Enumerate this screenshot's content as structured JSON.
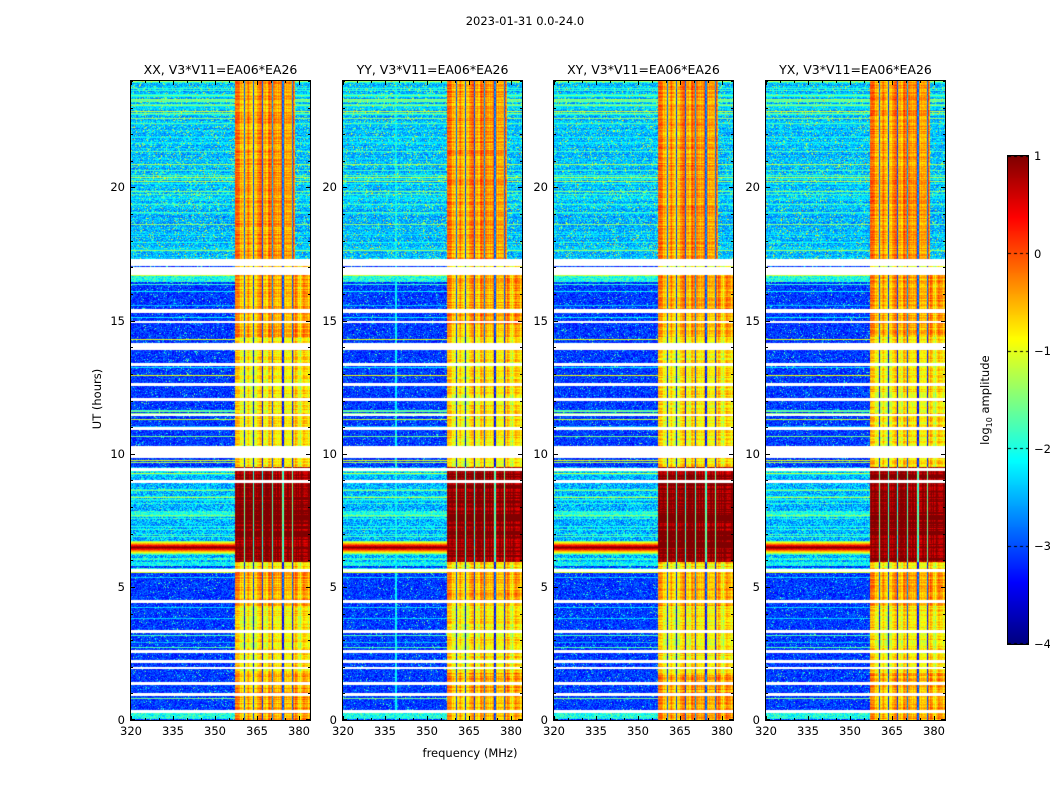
{
  "figure": {
    "title": "2023-01-31 0.0-24.0",
    "xlabel": "frequency (MHz)",
    "ylabel": "UT (hours)",
    "colorbar_label_log": "log",
    "colorbar_label_sub": "10",
    "colorbar_label_rest": " amplitude"
  },
  "chart_data": {
    "type": "heatmap",
    "title": "2023-01-31 0.0-24.0",
    "xlabel": "frequency (MHz)",
    "ylabel": "UT (hours)",
    "x_range": [
      320,
      384
    ],
    "x_ticks": [
      320,
      335,
      350,
      365,
      380
    ],
    "x_minor_step": 5,
    "y_range": [
      0,
      24
    ],
    "y_ticks": [
      0,
      5,
      10,
      15,
      20
    ],
    "y_minor_step": 1,
    "colormap": "jet",
    "colorbar": {
      "label": "log10 amplitude",
      "min": -4,
      "max": 1,
      "ticks": [
        1,
        0,
        -1,
        -2,
        -3,
        -4
      ]
    },
    "panels": [
      {
        "label": "XX, V3*V11=EA06*EA26",
        "pol": "XX"
      },
      {
        "label": "YY, V3*V11=EA06*EA26",
        "pol": "YY"
      },
      {
        "label": "XY, V3*V11=EA06*EA26",
        "pol": "XY"
      },
      {
        "label": "YX, V3*V11=EA06*EA26",
        "pol": "YX"
      }
    ],
    "features": {
      "background_level": -3.3,
      "bright_band_mhz": [
        357.2,
        384
      ],
      "bright_band_top_mhz": [
        357.2,
        378.5
      ],
      "rfi_null_channels_mhz": [
        360.6,
        363.8,
        367.0,
        370.6,
        374.4,
        377.8
      ],
      "enhanced_band_ut": [
        [
          0,
          1.75
        ],
        [
          4.3,
          5.67
        ],
        [
          14.4,
          16.72
        ]
      ],
      "active_region_ut": [
        17.32,
        24
      ],
      "burst_ut": [
        5.95,
        9.5
      ],
      "broadband_burst_ut": [
        6.22,
        6.74
      ],
      "preburst_ut": [
        5.68,
        5.95
      ],
      "burst_dark_lanes_ut": [
        [
          6.93,
          7.08
        ],
        [
          7.52,
          7.7
        ]
      ],
      "cyan_bands_ut": [
        [
          0.05,
          0.3
        ],
        [
          16.45,
          16.72
        ]
      ],
      "yy_line_mhz": 339,
      "data_gaps_ut": [
        [
          0.27,
          0.36
        ],
        [
          0.9,
          1.0
        ],
        [
          1.3,
          1.42
        ],
        [
          1.9,
          2.0
        ],
        [
          2.15,
          2.26
        ],
        [
          2.5,
          2.62
        ],
        [
          3.25,
          3.37
        ],
        [
          4.4,
          4.52
        ],
        [
          5.55,
          5.67
        ],
        [
          8.9,
          9.0
        ],
        [
          9.35,
          9.46
        ],
        [
          9.85,
          10.3
        ],
        [
          10.9,
          11.0
        ],
        [
          11.4,
          11.5
        ],
        [
          12.0,
          12.1
        ],
        [
          12.55,
          12.65
        ],
        [
          13.3,
          13.4
        ],
        [
          13.88,
          14.16
        ],
        [
          14.9,
          15.0
        ],
        [
          15.3,
          15.42
        ],
        [
          16.72,
          17.0
        ],
        [
          17.06,
          17.32
        ]
      ]
    }
  }
}
